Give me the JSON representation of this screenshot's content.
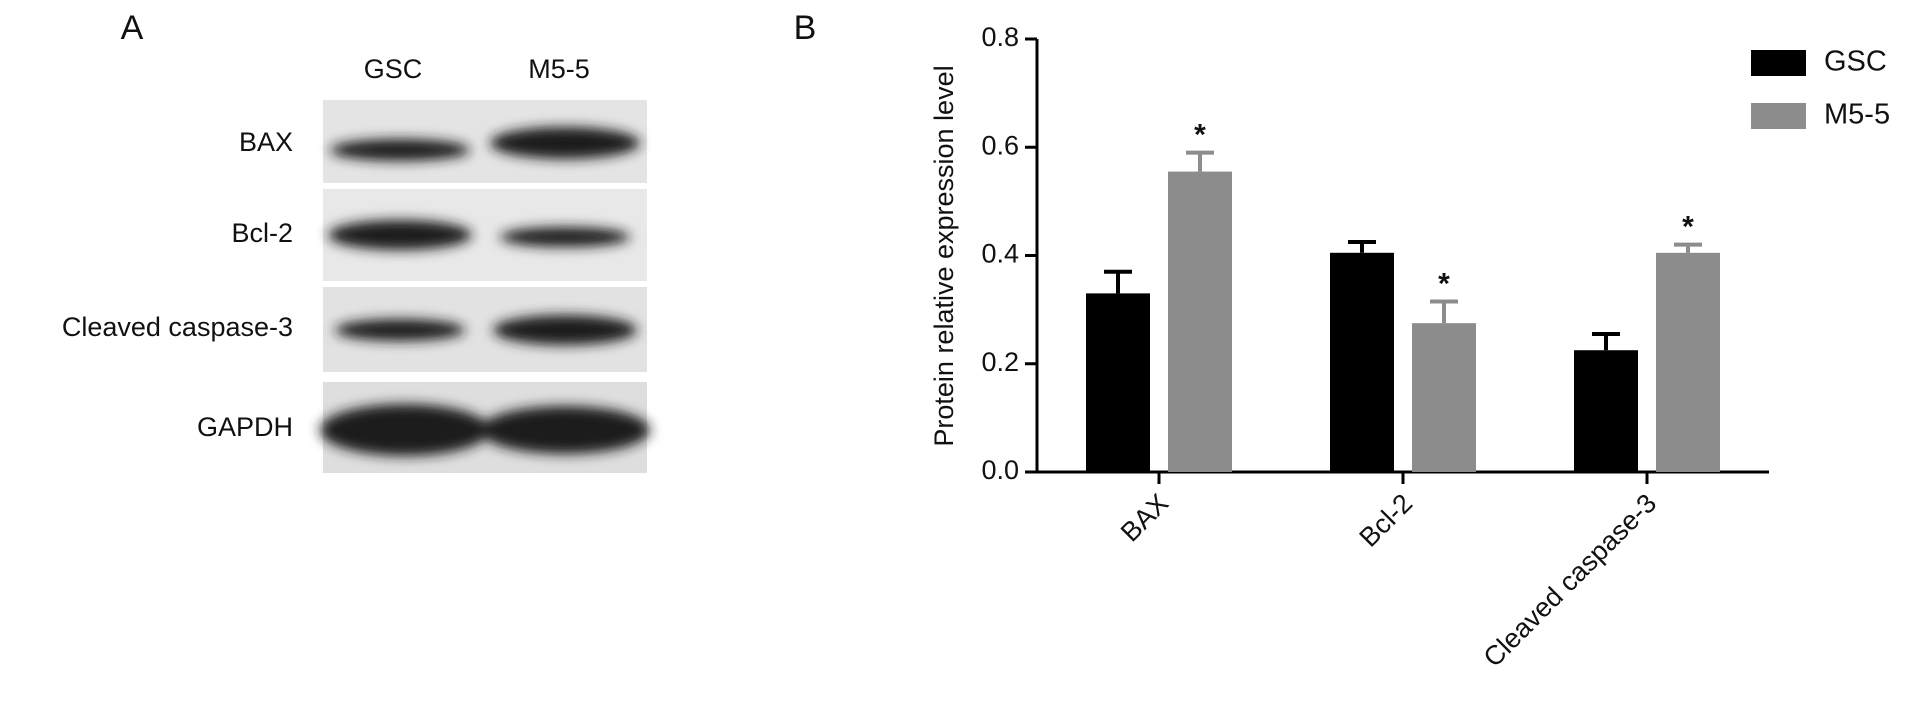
{
  "panel_a": {
    "label": "A",
    "columns": [
      "GSC",
      "M5-5"
    ],
    "rows": [
      "BAX",
      "Bcl-2",
      "Cleaved caspase-3",
      "GAPDH"
    ]
  },
  "chart_data": {
    "type": "bar",
    "panel_label": "B",
    "y_label": "Protein relative expression level",
    "categories": [
      "BAX",
      "Bcl-2",
      "Cleaved caspase-3"
    ],
    "series": [
      {
        "name": "GSC",
        "color": "#000000",
        "values": [
          0.33,
          0.405,
          0.225
        ],
        "errors": [
          0.04,
          0.02,
          0.03
        ]
      },
      {
        "name": "M5-5",
        "color": "#8c8c8c",
        "values": [
          0.555,
          0.275,
          0.405
        ],
        "errors": [
          0.035,
          0.04,
          0.015
        ],
        "annotations": [
          "*",
          "*",
          "*"
        ]
      }
    ],
    "ylim": [
      0,
      0.8
    ],
    "yticks": [
      {
        "value": 0,
        "label": "0.0"
      },
      0.2,
      0.4,
      0.6,
      0.8
    ],
    "legend": "top-right"
  }
}
